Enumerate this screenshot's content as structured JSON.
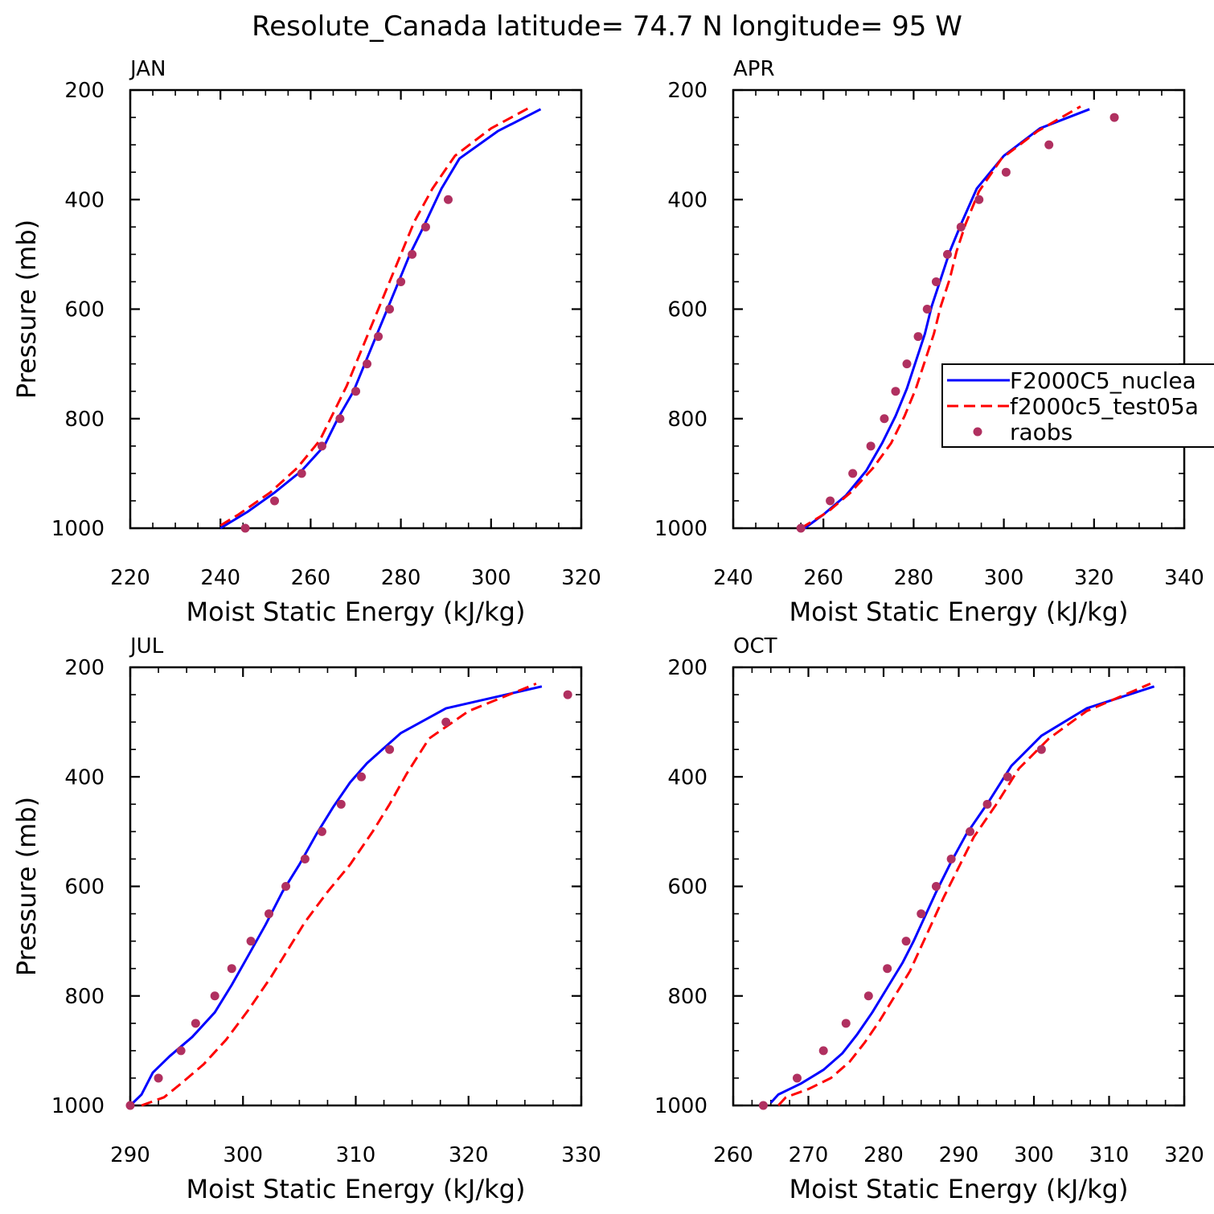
{
  "figure": {
    "title": "Resolute_Canada  latitude= 74.7 N longitude= 95 W"
  },
  "series_styles": [
    {
      "name": "F2000C5_nuclea",
      "color": "#0000ff",
      "style": "solid"
    },
    {
      "name": "f2000c5_test05a",
      "color": "#ff0000",
      "style": "dashed"
    },
    {
      "name": "raobs",
      "color": "#b03060",
      "style": "dots"
    }
  ],
  "legend": {
    "panel": "APR",
    "placement": "right",
    "entries": [
      "F2000C5_nuclea",
      "f2000c5_test05a",
      "raobs"
    ]
  },
  "chart_data": [
    {
      "type": "line",
      "panel_label": "JAN",
      "xlabel": "Moist Static Energy (kJ/kg)",
      "ylabel": "Pressure (mb)",
      "xlim": [
        220,
        320
      ],
      "ylim": [
        1000,
        200
      ],
      "xticks": [
        220,
        240,
        260,
        280,
        300,
        320
      ],
      "yticks": [
        200,
        400,
        600,
        800,
        1000
      ],
      "grid": false,
      "series": [
        {
          "name": "F2000C5_nuclea",
          "x": [
            240,
            246,
            252,
            258,
            263,
            266,
            269.5,
            272,
            274.5,
            277,
            279.5,
            282,
            285,
            289,
            293,
            301.5,
            311
          ],
          "y": [
            1000,
            970,
            935,
            895,
            850,
            800,
            750,
            700,
            650,
            600,
            550,
            500,
            450,
            380,
            325,
            275,
            235
          ]
        },
        {
          "name": "f2000c5_test05a",
          "x": [
            240,
            244,
            251,
            257,
            262,
            265,
            268,
            270,
            272.5,
            275,
            277.5,
            280,
            283,
            287,
            292,
            300,
            309
          ],
          "y": [
            995,
            975,
            935,
            890,
            840,
            790,
            740,
            700,
            650,
            600,
            550,
            500,
            440,
            380,
            320,
            270,
            230
          ]
        },
        {
          "name": "raobs",
          "x": [
            245.5,
            252,
            258,
            262.5,
            266.5,
            270,
            272.5,
            275,
            277.5,
            280,
            282.5,
            285.5,
            290.5
          ],
          "y": [
            1000,
            950,
            900,
            850,
            800,
            750,
            700,
            650,
            600,
            550,
            500,
            450,
            400
          ]
        }
      ]
    },
    {
      "type": "line",
      "panel_label": "APR",
      "xlabel": "Moist Static Energy (kJ/kg)",
      "ylabel": "",
      "xlim": [
        240,
        340
      ],
      "ylim": [
        1000,
        200
      ],
      "xticks": [
        240,
        260,
        280,
        300,
        320,
        340
      ],
      "yticks": [
        200,
        400,
        600,
        800,
        1000
      ],
      "grid": false,
      "series": [
        {
          "name": "F2000C5_nuclea",
          "x": [
            255,
            260,
            265,
            269.5,
            273,
            276,
            278.5,
            280.5,
            282.5,
            284,
            286,
            288,
            290.5,
            294,
            300,
            308,
            319
          ],
          "y": [
            1005,
            975,
            940,
            895,
            845,
            795,
            745,
            695,
            645,
            595,
            545,
            495,
            445,
            380,
            320,
            270,
            235
          ]
        },
        {
          "name": "f2000c5_test05a",
          "x": [
            255,
            261,
            266,
            271,
            275,
            278,
            280.5,
            282.5,
            284.5,
            286,
            288,
            289.5,
            291.5,
            294.5,
            299.5,
            307.5,
            317
          ],
          "y": [
            1000,
            970,
            935,
            890,
            845,
            795,
            745,
            695,
            645,
            595,
            545,
            495,
            445,
            385,
            325,
            275,
            230
          ]
        },
        {
          "name": "raobs",
          "x": [
            255,
            261.5,
            266.5,
            270.5,
            273.5,
            276,
            278.5,
            281,
            283,
            285,
            287.5,
            290.5,
            294.5,
            300.5,
            310,
            324.5
          ],
          "y": [
            1000,
            950,
            900,
            850,
            800,
            750,
            700,
            650,
            600,
            550,
            500,
            450,
            400,
            350,
            300,
            250
          ]
        }
      ]
    },
    {
      "type": "line",
      "panel_label": "JUL",
      "xlabel": "Moist Static Energy (kJ/kg)",
      "ylabel": "Pressure (mb)",
      "xlim": [
        290,
        330
      ],
      "ylim": [
        1000,
        200
      ],
      "xticks": [
        290,
        300,
        310,
        320,
        330
      ],
      "yticks": [
        200,
        400,
        600,
        800,
        1000
      ],
      "grid": false,
      "series": [
        {
          "name": "F2000C5_nuclea",
          "x": [
            290,
            291,
            292,
            293.5,
            295.5,
            297.5,
            299,
            300.5,
            302,
            303.5,
            305,
            306.5,
            308,
            309.5,
            311,
            314,
            318,
            326.5
          ],
          "y": [
            1000,
            980,
            940,
            910,
            875,
            830,
            780,
            725,
            670,
            610,
            560,
            505,
            455,
            410,
            375,
            320,
            275,
            235
          ]
        },
        {
          "name": "f2000c5_test05a",
          "x": [
            291,
            293,
            294.5,
            296.5,
            298.5,
            300.5,
            302.5,
            304,
            305.5,
            307.5,
            309.5,
            311.5,
            313,
            314.5,
            316.5,
            320,
            326
          ],
          "y": [
            1000,
            985,
            960,
            925,
            880,
            825,
            765,
            715,
            665,
            610,
            560,
            500,
            450,
            395,
            330,
            280,
            230
          ]
        },
        {
          "name": "raobs",
          "x": [
            290,
            292.5,
            294.5,
            295.8,
            297.5,
            299,
            300.7,
            302.3,
            303.8,
            305.5,
            307,
            308.7,
            310.5,
            313,
            318,
            328.8
          ],
          "y": [
            1000,
            950,
            900,
            850,
            800,
            750,
            700,
            650,
            600,
            550,
            500,
            450,
            400,
            350,
            300,
            250
          ]
        }
      ]
    },
    {
      "type": "line",
      "panel_label": "OCT",
      "xlabel": "Moist Static Energy (kJ/kg)",
      "ylabel": "",
      "xlim": [
        260,
        320
      ],
      "ylim": [
        1000,
        200
      ],
      "xticks": [
        260,
        270,
        280,
        290,
        300,
        310,
        320
      ],
      "yticks": [
        200,
        400,
        600,
        800,
        1000
      ],
      "grid": false,
      "series": [
        {
          "name": "F2000C5_nuclea",
          "x": [
            265,
            266,
            269,
            272,
            274.5,
            276.5,
            278.5,
            280.5,
            282.5,
            284,
            285.5,
            287,
            289,
            291,
            294,
            297,
            301,
            307,
            316
          ],
          "y": [
            995,
            980,
            960,
            935,
            905,
            870,
            830,
            785,
            740,
            700,
            655,
            610,
            555,
            505,
            445,
            380,
            325,
            275,
            235
          ]
        },
        {
          "name": "f2000c5_test05a",
          "x": [
            266,
            267,
            270,
            273,
            275.5,
            277.5,
            279.5,
            281.5,
            283.5,
            285,
            286.5,
            288,
            290,
            292,
            295,
            298,
            302,
            307,
            315.5
          ],
          "y": [
            1000,
            985,
            970,
            950,
            920,
            885,
            845,
            800,
            755,
            710,
            665,
            620,
            565,
            510,
            450,
            385,
            330,
            280,
            230
          ]
        },
        {
          "name": "raobs",
          "x": [
            264,
            268.5,
            272,
            275,
            278,
            280.5,
            283,
            285,
            287,
            289,
            291.5,
            293.8,
            296.5,
            301
          ],
          "y": [
            1000,
            950,
            900,
            850,
            800,
            750,
            700,
            650,
            600,
            550,
            500,
            450,
            400,
            350
          ]
        }
      ]
    }
  ]
}
